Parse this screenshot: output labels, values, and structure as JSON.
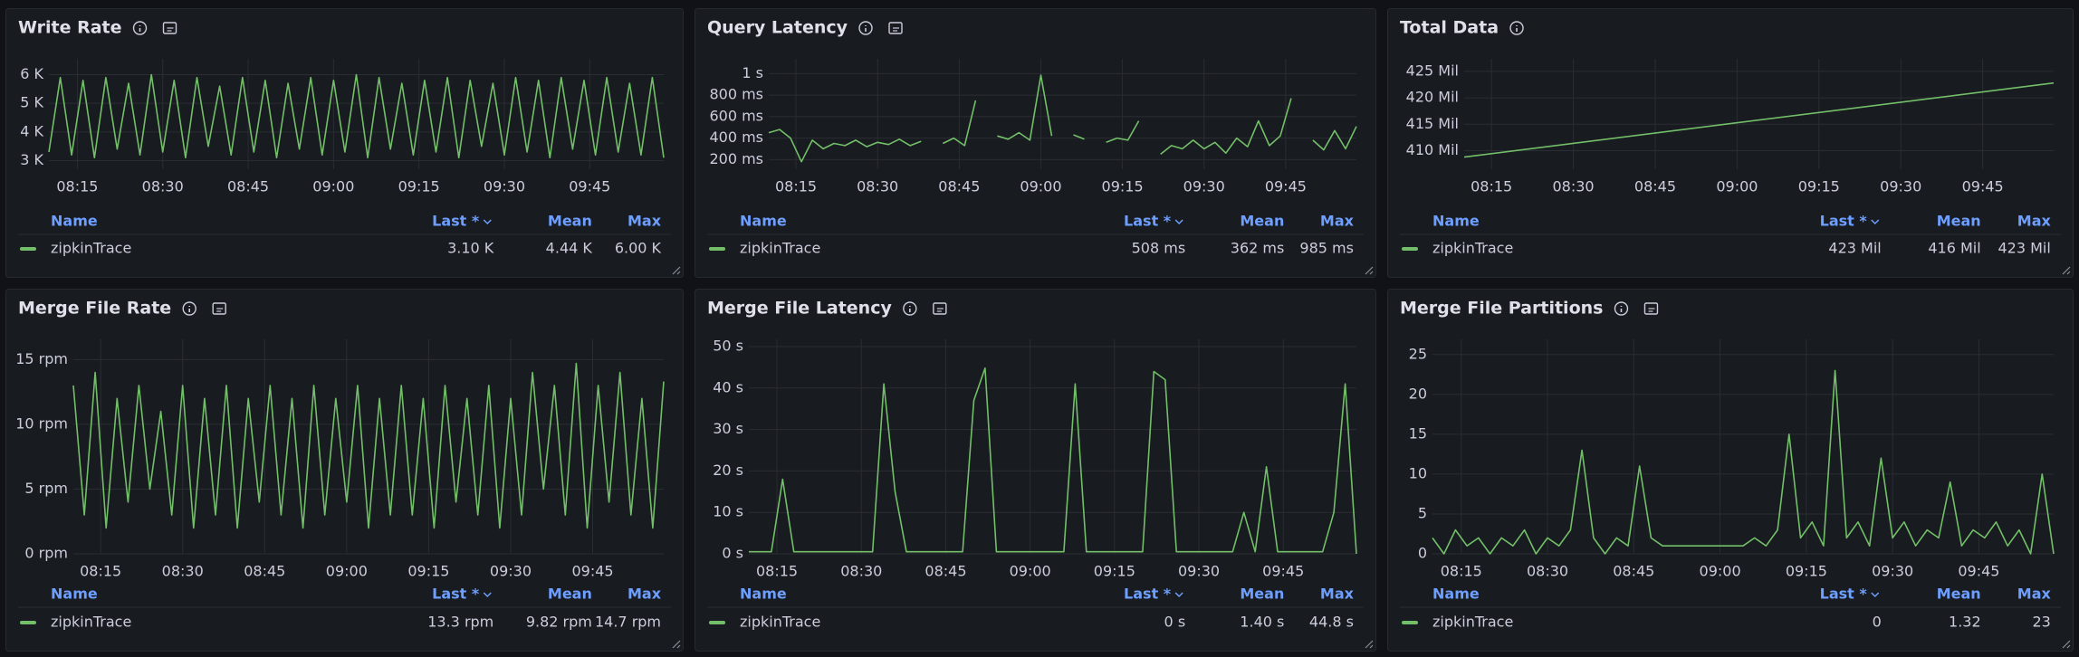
{
  "chart_data": [
    {
      "type": "line",
      "title": "Write Rate",
      "x": [
        "08:10",
        "08:12",
        "08:14",
        "08:16",
        "08:18",
        "08:20",
        "08:22",
        "08:24",
        "08:26",
        "08:28",
        "08:30",
        "08:32",
        "08:34",
        "08:36",
        "08:38",
        "08:40",
        "08:42",
        "08:44",
        "08:46",
        "08:48",
        "08:50",
        "08:52",
        "08:54",
        "08:56",
        "08:58",
        "09:00",
        "09:02",
        "09:04",
        "09:06",
        "09:08",
        "09:10",
        "09:12",
        "09:14",
        "09:16",
        "09:18",
        "09:20",
        "09:22",
        "09:24",
        "09:26",
        "09:28",
        "09:30",
        "09:32",
        "09:34",
        "09:36",
        "09:38",
        "09:40",
        "09:42",
        "09:44",
        "09:46",
        "09:48",
        "09:50",
        "09:52",
        "09:54",
        "09:56",
        "09:58"
      ],
      "series": [
        {
          "name": "zipkinTrace",
          "color": "#73bf69",
          "values": [
            3300,
            5900,
            3200,
            5800,
            3100,
            5900,
            3400,
            5700,
            3200,
            6000,
            3300,
            5800,
            3100,
            5900,
            3500,
            5600,
            3200,
            5900,
            3300,
            5800,
            3100,
            5700,
            3400,
            5900,
            3200,
            5800,
            3300,
            6000,
            3100,
            5900,
            3400,
            5700,
            3200,
            5800,
            3300,
            5900,
            3100,
            5800,
            3500,
            5700,
            3200,
            5900,
            3300,
            5800,
            3100,
            5900,
            3400,
            5800,
            3200,
            5900,
            3300,
            5700,
            3200,
            5900,
            3100
          ],
          "legend_stats": [
            "3.10 K",
            "4.44 K",
            "6.00 K"
          ]
        }
      ],
      "legend_headers": [
        "Name",
        "Last *",
        "Mean",
        "Max"
      ],
      "xlim": [
        "08:10",
        "09:58"
      ],
      "xticks": [
        "08:15",
        "08:30",
        "08:45",
        "09:00",
        "09:15",
        "09:30",
        "09:45"
      ],
      "ylim": [
        2700,
        6300
      ],
      "yticks": [
        {
          "value": 3000,
          "label": "3 K"
        },
        {
          "value": 4000,
          "label": "4 K"
        },
        {
          "value": 5000,
          "label": "5 K"
        },
        {
          "value": 6000,
          "label": "6 K"
        }
      ],
      "grid": true
    },
    {
      "type": "line",
      "title": "Query Latency",
      "x": [
        "08:10",
        "08:12",
        "08:14",
        "08:16",
        "08:18",
        "08:20",
        "08:22",
        "08:24",
        "08:26",
        "08:28",
        "08:30",
        "08:32",
        "08:34",
        "08:36",
        "08:38",
        "08:40",
        "08:42",
        "08:44",
        "08:46",
        "08:48",
        "08:50",
        "08:52",
        "08:54",
        "08:56",
        "08:58",
        "09:00",
        "09:02",
        "09:04",
        "09:06",
        "09:08",
        "09:10",
        "09:12",
        "09:14",
        "09:16",
        "09:18",
        "09:20",
        "09:22",
        "09:24",
        "09:26",
        "09:28",
        "09:30",
        "09:32",
        "09:34",
        "09:36",
        "09:38",
        "09:40",
        "09:42",
        "09:44",
        "09:46",
        "09:48",
        "09:50",
        "09:52",
        "09:54",
        "09:56",
        "09:58"
      ],
      "series": [
        {
          "name": "zipkinTrace",
          "color": "#73bf69",
          "values": [
            450,
            480,
            400,
            180,
            380,
            300,
            350,
            330,
            380,
            320,
            360,
            340,
            390,
            330,
            370,
            null,
            350,
            400,
            330,
            750,
            null,
            420,
            390,
            450,
            380,
            985,
            420,
            null,
            430,
            390,
            null,
            360,
            400,
            380,
            560,
            null,
            250,
            330,
            300,
            380,
            300,
            360,
            260,
            400,
            320,
            560,
            330,
            420,
            770,
            null,
            380,
            290,
            470,
            300,
            508
          ],
          "legend_stats": [
            "508 ms",
            "362 ms",
            "985 ms"
          ]
        }
      ],
      "legend_headers": [
        "Name",
        "Last *",
        "Mean",
        "Max"
      ],
      "xlim": [
        "08:10",
        "09:58"
      ],
      "xticks": [
        "08:15",
        "08:30",
        "08:45",
        "09:00",
        "09:15",
        "09:30",
        "09:45"
      ],
      "ylim": [
        110,
        1070
      ],
      "yticks": [
        {
          "value": 200,
          "label": "200 ms"
        },
        {
          "value": 400,
          "label": "400 ms"
        },
        {
          "value": 600,
          "label": "600 ms"
        },
        {
          "value": 800,
          "label": "800 ms"
        },
        {
          "value": 1000,
          "label": "1 s"
        }
      ],
      "grid": true
    },
    {
      "type": "line",
      "title": "Total Data",
      "x": [
        "08:10",
        "09:58"
      ],
      "series": [
        {
          "name": "zipkinTrace",
          "color": "#73bf69",
          "values": [
            408.8,
            422.8
          ],
          "legend_stats": [
            "423 Mil",
            "416 Mil",
            "423 Mil"
          ]
        }
      ],
      "legend_headers": [
        "Name",
        "Last *",
        "Mean",
        "Max"
      ],
      "xlim": [
        "08:10",
        "09:58"
      ],
      "xticks": [
        "08:15",
        "08:30",
        "08:45",
        "09:00",
        "09:15",
        "09:30",
        "09:45"
      ],
      "ylim": [
        406.5,
        426
      ],
      "yticks": [
        {
          "value": 410,
          "label": "410 Mil"
        },
        {
          "value": 415,
          "label": "415 Mil"
        },
        {
          "value": 420,
          "label": "420 Mil"
        },
        {
          "value": 425,
          "label": "425 Mil"
        }
      ],
      "grid": true
    },
    {
      "type": "line",
      "title": "Merge File Rate",
      "x": [
        "08:10",
        "08:12",
        "08:14",
        "08:16",
        "08:18",
        "08:20",
        "08:22",
        "08:24",
        "08:26",
        "08:28",
        "08:30",
        "08:32",
        "08:34",
        "08:36",
        "08:38",
        "08:40",
        "08:42",
        "08:44",
        "08:46",
        "08:48",
        "08:50",
        "08:52",
        "08:54",
        "08:56",
        "08:58",
        "09:00",
        "09:02",
        "09:04",
        "09:06",
        "09:08",
        "09:10",
        "09:12",
        "09:14",
        "09:16",
        "09:18",
        "09:20",
        "09:22",
        "09:24",
        "09:26",
        "09:28",
        "09:30",
        "09:32",
        "09:34",
        "09:36",
        "09:38",
        "09:40",
        "09:42",
        "09:44",
        "09:46",
        "09:48",
        "09:50",
        "09:52",
        "09:54",
        "09:56",
        "09:58"
      ],
      "series": [
        {
          "name": "zipkinTrace",
          "color": "#73bf69",
          "values": [
            13,
            3,
            14,
            2,
            12,
            4,
            13,
            5,
            11,
            3,
            13,
            2,
            12,
            3,
            13,
            2,
            12,
            4,
            13,
            3,
            12,
            2,
            13,
            3,
            12,
            4,
            13,
            2,
            12,
            3,
            13,
            3,
            12,
            2,
            13,
            4,
            12,
            3,
            13,
            2,
            12,
            3,
            14,
            5,
            13,
            3,
            14.7,
            2,
            13,
            4,
            14,
            3,
            12,
            2,
            13.3
          ],
          "legend_stats": [
            "13.3 rpm",
            "9.82 rpm",
            "14.7 rpm"
          ]
        }
      ],
      "legend_headers": [
        "Name",
        "Last *",
        "Mean",
        "Max"
      ],
      "xlim": [
        "08:10",
        "09:58"
      ],
      "xticks": [
        "08:15",
        "08:30",
        "08:45",
        "09:00",
        "09:15",
        "09:30",
        "09:45"
      ],
      "ylim": [
        0,
        16
      ],
      "yticks": [
        {
          "value": 0,
          "label": "0 rpm"
        },
        {
          "value": 5,
          "label": "5 rpm"
        },
        {
          "value": 10,
          "label": "10 rpm"
        },
        {
          "value": 15,
          "label": "15 rpm"
        }
      ],
      "grid": true
    },
    {
      "type": "line",
      "title": "Merge File Latency",
      "x": [
        "08:10",
        "08:12",
        "08:14",
        "08:16",
        "08:18",
        "08:20",
        "08:22",
        "08:24",
        "08:26",
        "08:28",
        "08:30",
        "08:32",
        "08:34",
        "08:36",
        "08:38",
        "08:40",
        "08:42",
        "08:44",
        "08:46",
        "08:48",
        "08:50",
        "08:52",
        "08:54",
        "08:56",
        "08:58",
        "09:00",
        "09:02",
        "09:04",
        "09:06",
        "09:08",
        "09:10",
        "09:12",
        "09:14",
        "09:16",
        "09:18",
        "09:20",
        "09:22",
        "09:24",
        "09:26",
        "09:28",
        "09:30",
        "09:32",
        "09:34",
        "09:36",
        "09:38",
        "09:40",
        "09:42",
        "09:44",
        "09:46",
        "09:48",
        "09:50",
        "09:52",
        "09:54",
        "09:56",
        "09:58"
      ],
      "series": [
        {
          "name": "zipkinTrace",
          "color": "#73bf69",
          "values": [
            0.5,
            0.5,
            0.5,
            18,
            0.5,
            0.5,
            0.5,
            0.5,
            0.5,
            0.5,
            0.5,
            0.5,
            41,
            15,
            0.5,
            0.5,
            0.5,
            0.5,
            0.5,
            0.5,
            37,
            44.8,
            0.5,
            0.5,
            0.5,
            0.5,
            0.5,
            0.5,
            0.5,
            41,
            0.5,
            0.5,
            0.5,
            0.5,
            0.5,
            0.5,
            44,
            42,
            0.5,
            0.5,
            0.5,
            0.5,
            0.5,
            0.5,
            10,
            0.5,
            21,
            0.5,
            0.5,
            0.5,
            0.5,
            0.5,
            10,
            41,
            0
          ],
          "legend_stats": [
            "0 s",
            "1.40 s",
            "44.8 s"
          ]
        }
      ],
      "legend_headers": [
        "Name",
        "Last *",
        "Mean",
        "Max"
      ],
      "xlim": [
        "08:10",
        "09:58"
      ],
      "xticks": [
        "08:15",
        "08:30",
        "08:45",
        "09:00",
        "09:15",
        "09:30",
        "09:45"
      ],
      "ylim": [
        0,
        50
      ],
      "yticks": [
        {
          "value": 0,
          "label": "0 s"
        },
        {
          "value": 10,
          "label": "10 s"
        },
        {
          "value": 20,
          "label": "20 s"
        },
        {
          "value": 30,
          "label": "30 s"
        },
        {
          "value": 40,
          "label": "40 s"
        },
        {
          "value": 50,
          "label": "50 s"
        }
      ],
      "grid": true
    },
    {
      "type": "line",
      "title": "Merge File Partitions",
      "x": [
        "08:10",
        "08:12",
        "08:14",
        "08:16",
        "08:18",
        "08:20",
        "08:22",
        "08:24",
        "08:26",
        "08:28",
        "08:30",
        "08:32",
        "08:34",
        "08:36",
        "08:38",
        "08:40",
        "08:42",
        "08:44",
        "08:46",
        "08:48",
        "08:50",
        "08:52",
        "08:54",
        "08:56",
        "08:58",
        "09:00",
        "09:02",
        "09:04",
        "09:06",
        "09:08",
        "09:10",
        "09:12",
        "09:14",
        "09:16",
        "09:18",
        "09:20",
        "09:22",
        "09:24",
        "09:26",
        "09:28",
        "09:30",
        "09:32",
        "09:34",
        "09:36",
        "09:38",
        "09:40",
        "09:42",
        "09:44",
        "09:46",
        "09:48",
        "09:50",
        "09:52",
        "09:54",
        "09:56",
        "09:58"
      ],
      "series": [
        {
          "name": "zipkinTrace",
          "color": "#73bf69",
          "values": [
            2,
            0,
            3,
            1,
            2,
            0,
            2,
            1,
            3,
            0,
            2,
            1,
            3,
            13,
            2,
            0,
            2,
            1,
            11,
            2,
            1,
            1,
            1,
            1,
            1,
            1,
            1,
            1,
            2,
            1,
            3,
            15,
            2,
            4,
            1,
            23,
            2,
            4,
            1,
            12,
            2,
            4,
            1,
            3,
            2,
            9,
            1,
            3,
            2,
            4,
            1,
            3,
            0,
            10,
            0
          ],
          "legend_stats": [
            "0",
            "1.32",
            "23"
          ]
        }
      ],
      "legend_headers": [
        "Name",
        "Last *",
        "Mean",
        "Max"
      ],
      "xlim": [
        "08:10",
        "09:58"
      ],
      "xticks": [
        "08:15",
        "08:30",
        "08:45",
        "09:00",
        "09:15",
        "09:30",
        "09:45"
      ],
      "ylim": [
        0,
        26
      ],
      "yticks": [
        0,
        5,
        10,
        15,
        20,
        25
      ],
      "grid": true
    }
  ]
}
